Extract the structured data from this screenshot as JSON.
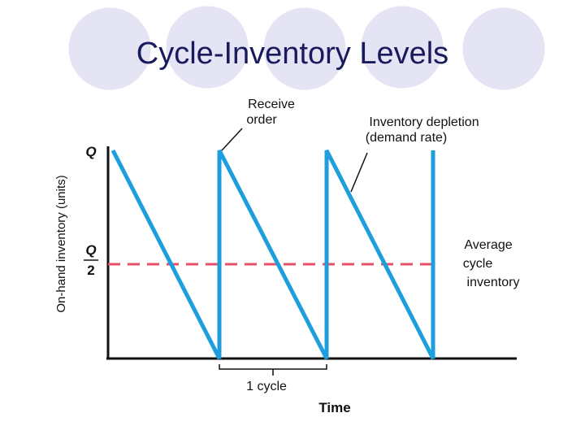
{
  "title": "Cycle-Inventory Levels",
  "y_axis_label": "On-hand inventory (units)",
  "x_axis_label": "Time",
  "level_q": "Q",
  "half_q": {
    "numerator": "Q",
    "denominator": "2"
  },
  "annotations": {
    "receive_order": [
      "Receive",
      "order"
    ],
    "depletion": [
      "Inventory depletion",
      "(demand rate)"
    ],
    "average": [
      "Average",
      "cycle",
      "inventory"
    ],
    "cycle": "1 cycle"
  }
}
